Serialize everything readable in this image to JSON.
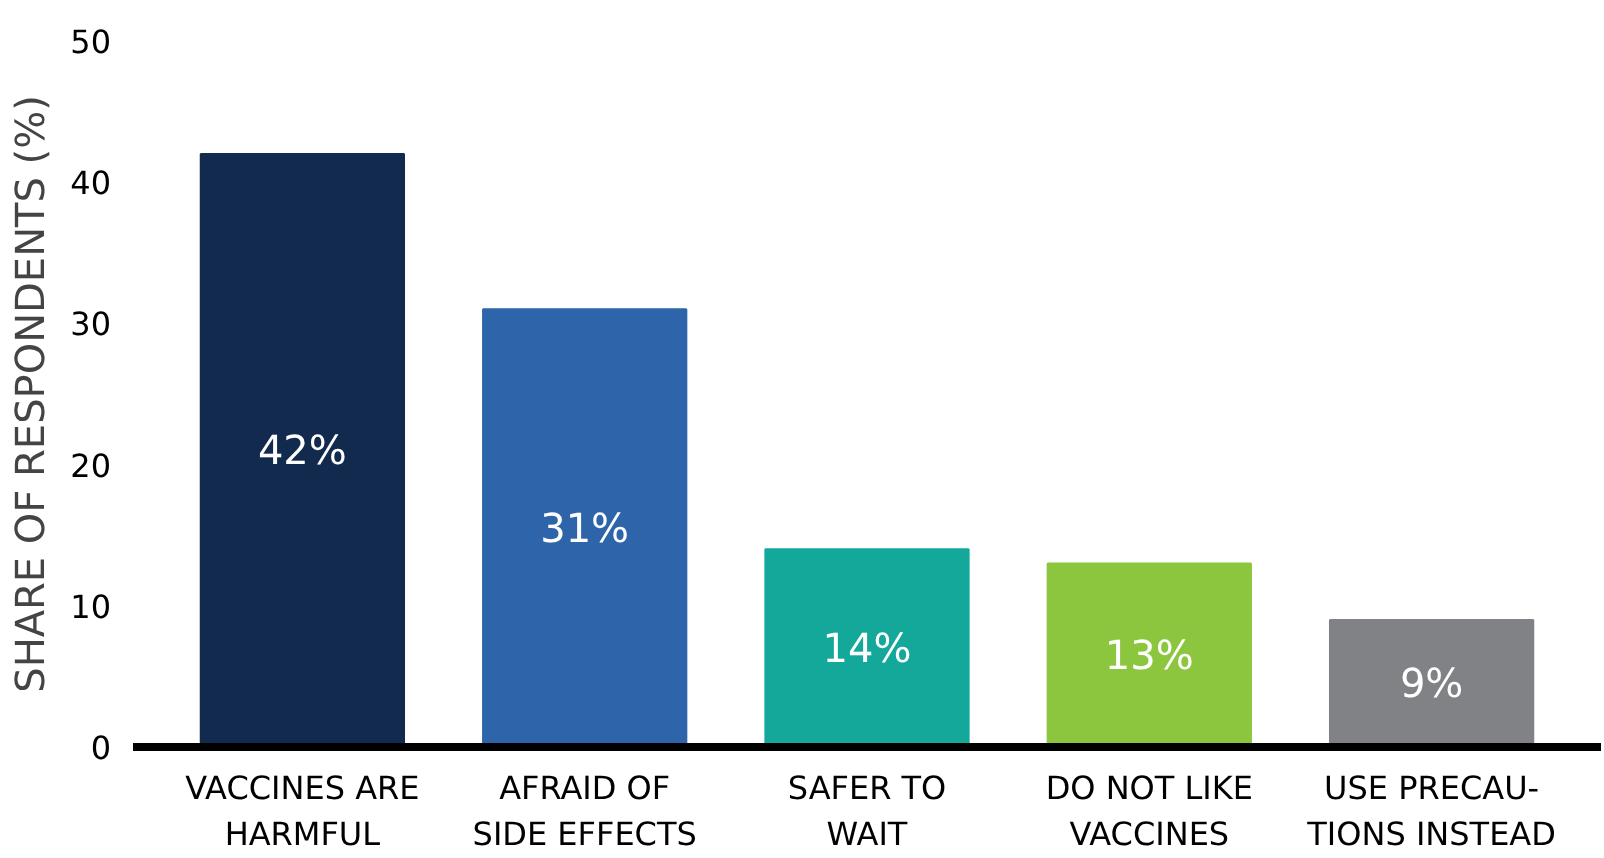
{
  "chart_data": {
    "type": "bar",
    "ylabel": "SHARE OF RESPONDENTS (%)",
    "categories": [
      "VACCINES ARE\nHARMFUL",
      "AFRAID OF\nSIDE EFFECTS",
      "SAFER TO\nWAIT",
      "DO NOT LIKE\nVACCINES",
      "USE PRECAU-\nTIONS INSTEAD"
    ],
    "values": [
      42,
      31,
      14,
      13,
      9
    ],
    "colors": [
      "#132a4f",
      "#2e64aa",
      "#14a89b",
      "#8cc63f",
      "#808285"
    ],
    "value_labels": [
      "42%",
      "31%",
      "14%",
      "13%",
      "9%"
    ],
    "ylim": [
      0,
      50
    ],
    "yticks": [
      0,
      10,
      20,
      30,
      40,
      50
    ],
    "grid": false
  }
}
